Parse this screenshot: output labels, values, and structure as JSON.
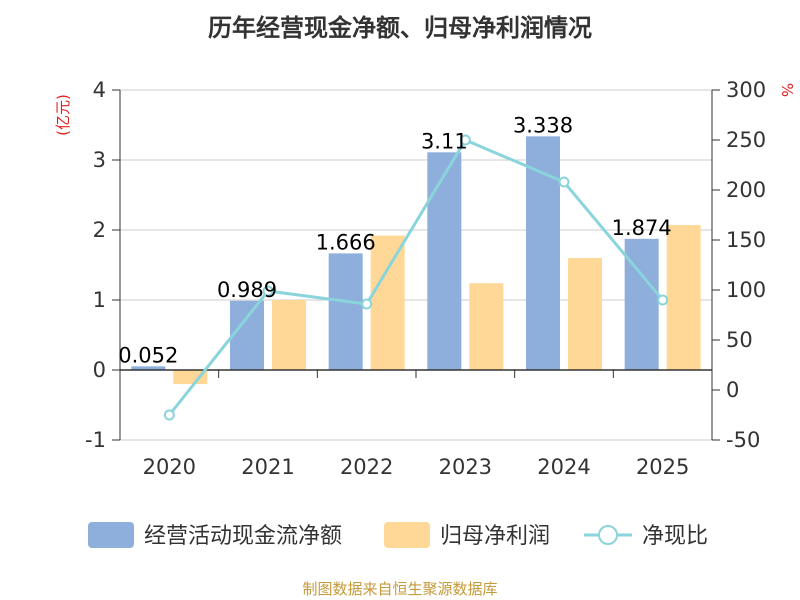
{
  "title": "历年经营现金净额、归母净利润情况",
  "source": "制图数据来自恒生聚源数据库",
  "colors": {
    "cash_flow": "#8eaedb",
    "net_profit": "#ffd796",
    "ratio": "#8ad4dc",
    "axis": "#333333",
    "grid": "#cccccc",
    "unit": "#e02020",
    "source": "#c49a3a"
  },
  "chart_data": {
    "type": "bar",
    "categories": [
      "2020",
      "2021",
      "2022",
      "2023",
      "2024",
      "2025"
    ],
    "left_axis": {
      "unit_label": "(亿元)",
      "ylim": [
        -1,
        4
      ],
      "ticks": [
        "-1",
        "0",
        "1",
        "2",
        "3",
        "4"
      ]
    },
    "right_axis": {
      "unit_label": "%",
      "ylim": [
        -50,
        300
      ],
      "ticks": [
        "-50",
        "0",
        "50",
        "100",
        "150",
        "200",
        "250",
        "300"
      ]
    },
    "series": [
      {
        "name": "经营活动现金流净额",
        "kind": "bar",
        "axis": "left",
        "values": [
          0.052,
          0.989,
          1.666,
          3.11,
          3.338,
          1.874
        ],
        "labels": [
          "0.052",
          "0.989",
          "1.666",
          "3.11",
          "3.338",
          "1.874"
        ]
      },
      {
        "name": "归母净利润",
        "kind": "bar",
        "axis": "left",
        "values": [
          -0.2,
          1.0,
          1.92,
          1.24,
          1.6,
          2.07
        ]
      },
      {
        "name": "净现比",
        "kind": "line",
        "axis": "right",
        "values": [
          -25,
          99,
          86,
          250,
          208,
          90
        ]
      }
    ],
    "grid": true,
    "legend_position": "bottom"
  }
}
